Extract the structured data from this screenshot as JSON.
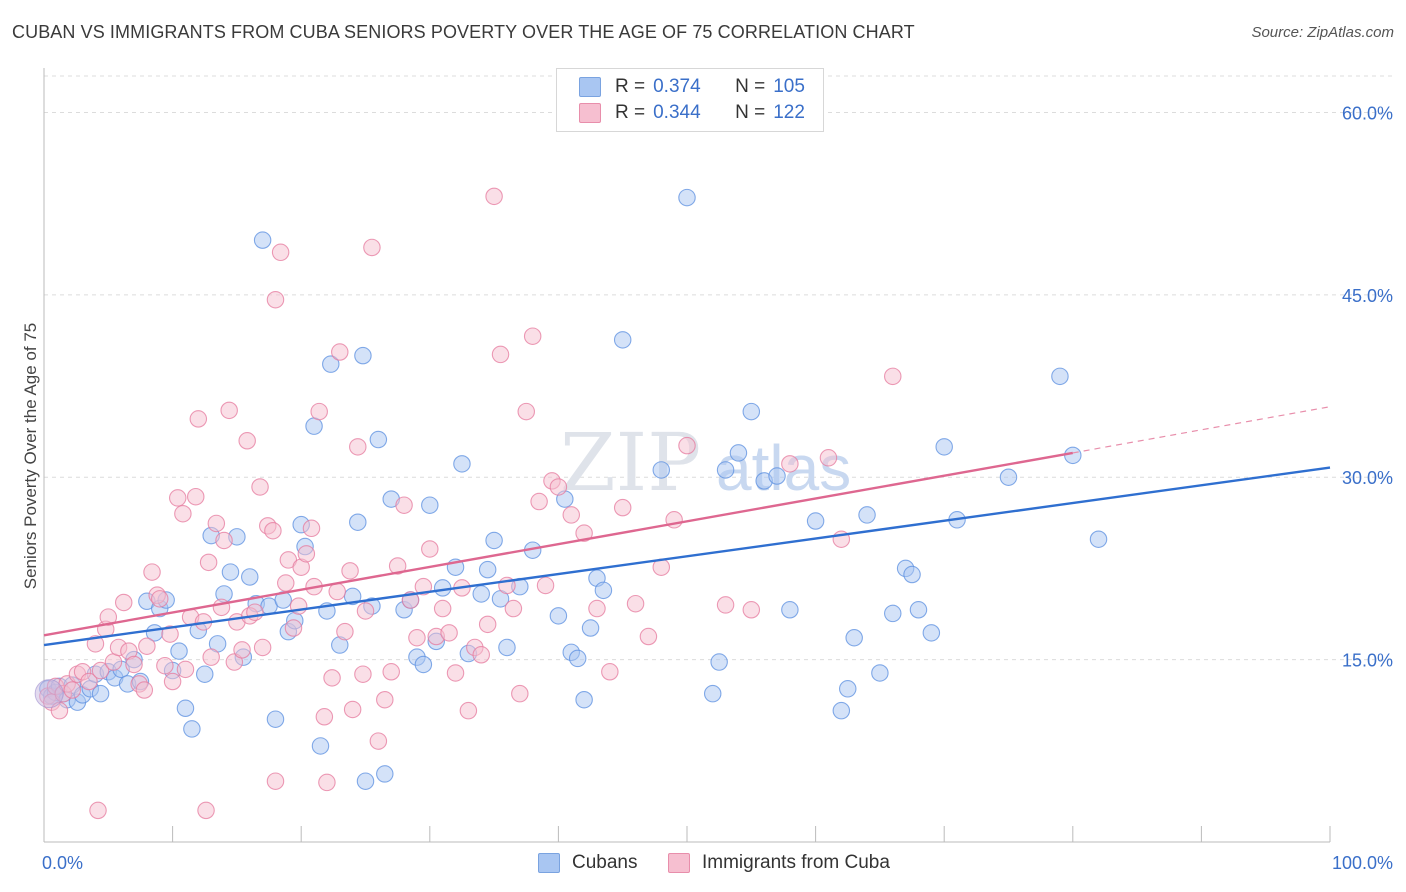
{
  "header": {
    "title": "CUBAN VS IMMIGRANTS FROM CUBA SENIORS POVERTY OVER THE AGE OF 75 CORRELATION CHART",
    "source": "Source: ZipAtlas.com"
  },
  "watermark": {
    "text_zip": "ZIP",
    "text_atlas": "atlas"
  },
  "legend": {
    "rows": [
      {
        "r_label": "R =",
        "r_value": "0.374",
        "n_label": "N =",
        "n_value": "105",
        "color": "#a9c6f2",
        "border": "#7aa3e0"
      },
      {
        "r_label": "R =",
        "r_value": "0.344",
        "n_label": "N =",
        "n_value": "122",
        "color": "#f6bfd0",
        "border": "#e88eab"
      }
    ]
  },
  "bottom_legend": {
    "items": [
      {
        "label": "Cubans",
        "color": "#a9c6f2",
        "border": "#7aa3e0"
      },
      {
        "label": "Immigrants from Cuba",
        "color": "#f6bfd0",
        "border": "#e88eab"
      }
    ]
  },
  "chart_data": {
    "type": "scatter",
    "title": "CUBAN VS IMMIGRANTS FROM CUBA SENIORS POVERTY OVER THE AGE OF 75 CORRELATION CHART",
    "xlabel": "",
    "ylabel": "Seniors Poverty Over the Age of 75",
    "xlim": [
      0,
      100
    ],
    "ylim": [
      0,
      63
    ],
    "x_tick_labels": [
      "0.0%",
      "100.0%"
    ],
    "y_ticks": [
      15,
      30,
      45,
      60
    ],
    "y_tick_labels": [
      "15.0%",
      "30.0%",
      "45.0%",
      "60.0%"
    ],
    "grid": true,
    "legend_position": "top-center",
    "series": [
      {
        "name": "Cubans",
        "color": "#5b8fe0",
        "fill": "#a9c6f2",
        "trend": {
          "x0": 0,
          "y0": 16.2,
          "x1": 100,
          "y1": 30.8
        },
        "points": [
          [
            0.3,
            12.6
          ],
          [
            0.6,
            12.0
          ],
          [
            0.9,
            12.3
          ],
          [
            1.2,
            12.8
          ],
          [
            1.5,
            12.2
          ],
          [
            1.8,
            11.7
          ],
          [
            2.2,
            12.9
          ],
          [
            2.6,
            11.5
          ],
          [
            3.0,
            12.1
          ],
          [
            3.6,
            12.6
          ],
          [
            4.0,
            13.8
          ],
          [
            4.4,
            12.2
          ],
          [
            5.0,
            14.0
          ],
          [
            5.5,
            13.5
          ],
          [
            6.0,
            14.2
          ],
          [
            6.5,
            13.0
          ],
          [
            7.0,
            15.0
          ],
          [
            7.5,
            13.2
          ],
          [
            8.0,
            19.8
          ],
          [
            8.6,
            17.2
          ],
          [
            9.0,
            19.2
          ],
          [
            9.5,
            19.9
          ],
          [
            10.0,
            14.1
          ],
          [
            10.5,
            15.7
          ],
          [
            11.0,
            11.0
          ],
          [
            11.5,
            9.3
          ],
          [
            12.0,
            17.4
          ],
          [
            12.5,
            13.8
          ],
          [
            13.0,
            25.2
          ],
          [
            13.5,
            16.3
          ],
          [
            14.0,
            20.4
          ],
          [
            14.5,
            22.2
          ],
          [
            15.0,
            25.1
          ],
          [
            15.5,
            15.2
          ],
          [
            16.0,
            21.8
          ],
          [
            16.5,
            19.6
          ],
          [
            17.0,
            49.5
          ],
          [
            17.5,
            19.4
          ],
          [
            18.0,
            10.1
          ],
          [
            18.6,
            19.9
          ],
          [
            19.0,
            17.3
          ],
          [
            19.5,
            18.2
          ],
          [
            20.0,
            26.1
          ],
          [
            20.3,
            24.3
          ],
          [
            21.0,
            34.2
          ],
          [
            21.5,
            7.9
          ],
          [
            22.0,
            19.0
          ],
          [
            22.3,
            39.3
          ],
          [
            23.0,
            16.2
          ],
          [
            24.0,
            20.2
          ],
          [
            24.4,
            26.3
          ],
          [
            24.8,
            40.0
          ],
          [
            25.0,
            5.0
          ],
          [
            25.5,
            19.4
          ],
          [
            26.0,
            33.1
          ],
          [
            26.5,
            5.6
          ],
          [
            27.0,
            28.2
          ],
          [
            28.0,
            19.1
          ],
          [
            28.5,
            19.9
          ],
          [
            29.0,
            15.2
          ],
          [
            29.5,
            14.6
          ],
          [
            30.0,
            27.7
          ],
          [
            30.5,
            16.5
          ],
          [
            31.0,
            20.9
          ],
          [
            32.0,
            22.6
          ],
          [
            32.5,
            31.1
          ],
          [
            33.0,
            15.5
          ],
          [
            34.0,
            20.4
          ],
          [
            34.5,
            22.4
          ],
          [
            35.0,
            24.8
          ],
          [
            35.5,
            20.0
          ],
          [
            36.0,
            16.0
          ],
          [
            37.0,
            21.0
          ],
          [
            38.0,
            24.0
          ],
          [
            40.0,
            18.6
          ],
          [
            40.5,
            28.2
          ],
          [
            41.0,
            15.6
          ],
          [
            41.5,
            15.1
          ],
          [
            42.0,
            11.7
          ],
          [
            42.5,
            17.6
          ],
          [
            43.0,
            21.7
          ],
          [
            43.5,
            20.7
          ],
          [
            45.0,
            41.3
          ],
          [
            48.0,
            30.6
          ],
          [
            50.0,
            53.0
          ],
          [
            52.0,
            12.2
          ],
          [
            52.5,
            14.8
          ],
          [
            53.0,
            30.6
          ],
          [
            54.0,
            32.0
          ],
          [
            55.0,
            35.4
          ],
          [
            56.0,
            29.7
          ],
          [
            57.0,
            30.1
          ],
          [
            58.0,
            19.1
          ],
          [
            60.0,
            26.4
          ],
          [
            62.0,
            10.8
          ],
          [
            62.5,
            12.6
          ],
          [
            63.0,
            16.8
          ],
          [
            64.0,
            26.9
          ],
          [
            65.0,
            13.9
          ],
          [
            66.0,
            18.8
          ],
          [
            67.0,
            22.5
          ],
          [
            67.5,
            22.0
          ],
          [
            68.0,
            19.1
          ],
          [
            69.0,
            17.2
          ],
          [
            70.0,
            32.5
          ],
          [
            71.0,
            26.5
          ],
          [
            75.0,
            30.0
          ],
          [
            79.0,
            38.3
          ],
          [
            80.0,
            31.8
          ],
          [
            82.0,
            24.9
          ]
        ]
      },
      {
        "name": "Immigrants from Cuba",
        "color": "#e57a9e",
        "fill": "#f6bfd0",
        "trend": {
          "x0": 0,
          "y0": 17.0,
          "x1": 80,
          "y1": 32.0
        },
        "trend_extension": {
          "x0": 80,
          "y0": 32.0,
          "x1": 100,
          "y1": 35.8
        },
        "points": [
          [
            0.3,
            12.0
          ],
          [
            0.6,
            11.5
          ],
          [
            0.9,
            12.8
          ],
          [
            1.2,
            10.8
          ],
          [
            1.5,
            12.2
          ],
          [
            1.8,
            13.0
          ],
          [
            2.2,
            12.5
          ],
          [
            2.6,
            13.8
          ],
          [
            3.0,
            14.0
          ],
          [
            3.5,
            13.2
          ],
          [
            4.0,
            16.3
          ],
          [
            4.4,
            14.1
          ],
          [
            4.8,
            17.5
          ],
          [
            5.0,
            18.5
          ],
          [
            5.4,
            14.8
          ],
          [
            5.8,
            16.0
          ],
          [
            6.2,
            19.7
          ],
          [
            6.6,
            15.7
          ],
          [
            7.0,
            14.6
          ],
          [
            7.4,
            13.0
          ],
          [
            7.8,
            12.5
          ],
          [
            8.0,
            16.1
          ],
          [
            8.4,
            22.2
          ],
          [
            8.8,
            20.3
          ],
          [
            9.0,
            20.0
          ],
          [
            9.4,
            14.5
          ],
          [
            9.8,
            17.1
          ],
          [
            10.0,
            13.2
          ],
          [
            10.4,
            28.3
          ],
          [
            10.8,
            27.0
          ],
          [
            11.0,
            14.2
          ],
          [
            11.4,
            18.5
          ],
          [
            11.8,
            28.4
          ],
          [
            12.0,
            34.8
          ],
          [
            12.4,
            18.1
          ],
          [
            12.8,
            23.0
          ],
          [
            13.0,
            15.2
          ],
          [
            13.4,
            26.2
          ],
          [
            13.8,
            19.3
          ],
          [
            14.0,
            24.8
          ],
          [
            14.4,
            35.5
          ],
          [
            14.8,
            14.8
          ],
          [
            15.0,
            18.1
          ],
          [
            15.4,
            15.8
          ],
          [
            15.8,
            33.0
          ],
          [
            16.0,
            18.6
          ],
          [
            16.4,
            18.9
          ],
          [
            16.8,
            29.2
          ],
          [
            17.0,
            16.0
          ],
          [
            17.4,
            26.0
          ],
          [
            17.8,
            25.6
          ],
          [
            18.0,
            44.6
          ],
          [
            18.4,
            48.5
          ],
          [
            18.8,
            21.3
          ],
          [
            19.0,
            23.2
          ],
          [
            19.4,
            17.6
          ],
          [
            19.8,
            19.4
          ],
          [
            20.0,
            22.6
          ],
          [
            20.4,
            23.7
          ],
          [
            20.8,
            25.8
          ],
          [
            21.0,
            21.0
          ],
          [
            21.4,
            35.4
          ],
          [
            21.8,
            10.3
          ],
          [
            22.0,
            4.9
          ],
          [
            22.4,
            13.5
          ],
          [
            22.8,
            20.6
          ],
          [
            23.0,
            40.3
          ],
          [
            23.4,
            17.3
          ],
          [
            23.8,
            22.3
          ],
          [
            24.0,
            10.9
          ],
          [
            24.4,
            32.5
          ],
          [
            24.8,
            13.8
          ],
          [
            25.0,
            19.0
          ],
          [
            25.5,
            48.9
          ],
          [
            26.0,
            8.3
          ],
          [
            26.5,
            11.7
          ],
          [
            27.0,
            14.0
          ],
          [
            27.5,
            22.7
          ],
          [
            28.0,
            27.7
          ],
          [
            28.5,
            19.9
          ],
          [
            29.0,
            16.8
          ],
          [
            29.5,
            21.0
          ],
          [
            30.0,
            24.1
          ],
          [
            30.5,
            16.9
          ],
          [
            31.0,
            19.2
          ],
          [
            31.5,
            17.2
          ],
          [
            32.0,
            13.9
          ],
          [
            32.5,
            20.9
          ],
          [
            33.0,
            10.8
          ],
          [
            33.5,
            16.0
          ],
          [
            34.0,
            15.4
          ],
          [
            34.5,
            17.9
          ],
          [
            35.0,
            53.1
          ],
          [
            35.5,
            40.1
          ],
          [
            36.0,
            21.1
          ],
          [
            36.5,
            19.2
          ],
          [
            37.0,
            12.2
          ],
          [
            37.5,
            35.4
          ],
          [
            38.0,
            41.6
          ],
          [
            38.5,
            28.0
          ],
          [
            39.0,
            21.1
          ],
          [
            39.5,
            29.7
          ],
          [
            40.0,
            29.2
          ],
          [
            41.0,
            26.9
          ],
          [
            42.0,
            25.4
          ],
          [
            43.0,
            19.2
          ],
          [
            44.0,
            14.0
          ],
          [
            45.0,
            27.5
          ],
          [
            46.0,
            19.6
          ],
          [
            47.0,
            16.9
          ],
          [
            48.0,
            22.6
          ],
          [
            49.0,
            26.5
          ],
          [
            50.0,
            32.6
          ],
          [
            53.0,
            19.5
          ],
          [
            55.0,
            19.1
          ],
          [
            58.0,
            31.1
          ],
          [
            61.0,
            31.6
          ],
          [
            62.0,
            24.9
          ],
          [
            66.0,
            38.3
          ],
          [
            4.2,
            2.6
          ],
          [
            18.0,
            5.0
          ],
          [
            12.6,
            2.6
          ]
        ]
      }
    ]
  }
}
